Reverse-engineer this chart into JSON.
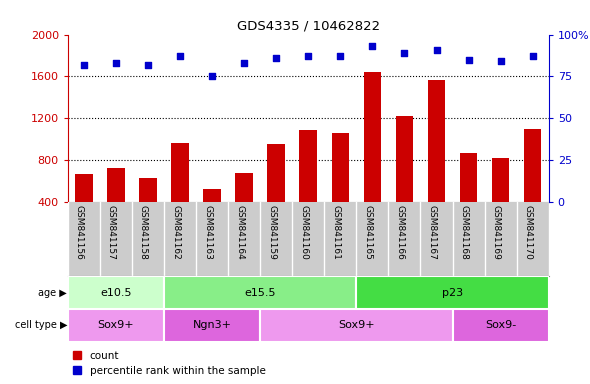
{
  "title": "GDS4335 / 10462822",
  "samples": [
    "GSM841156",
    "GSM841157",
    "GSM841158",
    "GSM841162",
    "GSM841163",
    "GSM841164",
    "GSM841159",
    "GSM841160",
    "GSM841161",
    "GSM841165",
    "GSM841166",
    "GSM841167",
    "GSM841168",
    "GSM841169",
    "GSM841170"
  ],
  "counts": [
    660,
    720,
    630,
    960,
    520,
    670,
    950,
    1090,
    1060,
    1640,
    1220,
    1560,
    870,
    820,
    1100
  ],
  "percentiles": [
    82,
    83,
    82,
    87,
    75,
    83,
    86,
    87,
    87,
    93,
    89,
    91,
    85,
    84,
    87
  ],
  "ylim_left": [
    400,
    2000
  ],
  "ylim_right": [
    0,
    100
  ],
  "yticks_left": [
    400,
    800,
    1200,
    1600,
    2000
  ],
  "yticks_right": [
    0,
    25,
    50,
    75,
    100
  ],
  "bar_color": "#cc0000",
  "dot_color": "#0000cc",
  "age_groups": [
    {
      "label": "e10.5",
      "start": 0,
      "end": 3,
      "color": "#ccffcc"
    },
    {
      "label": "e15.5",
      "start": 3,
      "end": 9,
      "color": "#88ee88"
    },
    {
      "label": "p23",
      "start": 9,
      "end": 15,
      "color": "#44dd44"
    }
  ],
  "cell_groups": [
    {
      "label": "Sox9+",
      "start": 0,
      "end": 3,
      "color": "#ee99ee"
    },
    {
      "label": "Ngn3+",
      "start": 3,
      "end": 6,
      "color": "#dd66dd"
    },
    {
      "label": "Sox9+",
      "start": 6,
      "end": 12,
      "color": "#ee99ee"
    },
    {
      "label": "Sox9-",
      "start": 12,
      "end": 15,
      "color": "#dd66dd"
    }
  ],
  "xticklabel_bg": "#cccccc",
  "plot_bg": "#ffffff",
  "grid_dotted_color": "#000000"
}
